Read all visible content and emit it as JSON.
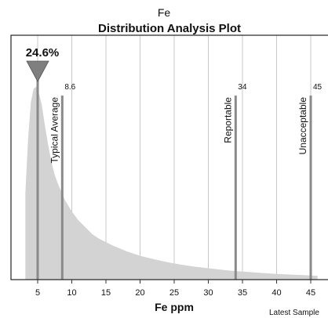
{
  "chart_data": {
    "type": "area",
    "title": "Distribution Analysis Plot",
    "subtitle": "Fe",
    "xlabel": "Fe ppm",
    "ylabel": "",
    "xlim": [
      3,
      46
    ],
    "xticks": [
      5,
      10,
      15,
      20,
      25,
      30,
      35,
      40,
      45
    ],
    "grid": true,
    "x": [
      3.2,
      3.6,
      4.0,
      4.4,
      4.8,
      5.2,
      5.6,
      6.0,
      6.5,
      7.0,
      7.5,
      8.0,
      9.0,
      10.0,
      11.0,
      12.0,
      13.0,
      14.0,
      15.0,
      16.0,
      18.0,
      20.0,
      22.0,
      24.0,
      26.0,
      28.0,
      30.0,
      33.0,
      36.0,
      40.0,
      46.0
    ],
    "y": [
      0.38,
      0.62,
      0.78,
      0.84,
      0.85,
      0.82,
      0.77,
      0.69,
      0.6,
      0.52,
      0.46,
      0.42,
      0.35,
      0.3,
      0.26,
      0.23,
      0.2,
      0.18,
      0.165,
      0.15,
      0.125,
      0.105,
      0.09,
      0.077,
      0.066,
      0.057,
      0.05,
      0.04,
      0.033,
      0.025,
      0.017
    ],
    "peak": {
      "label": "24.6%",
      "x": 5.0
    },
    "markers": [
      {
        "label": "Typical Average",
        "value": 8.6,
        "value_text": "8.6"
      },
      {
        "label": "Reportable",
        "value": 34,
        "value_text": "34"
      },
      {
        "label": "Unacceptable",
        "value": 45,
        "value_text": "45"
      }
    ],
    "footer": "Latest Sample",
    "colors": {
      "area": "#d3d3d3",
      "grid": "#c8c8c8",
      "marker": "#8a8a8a",
      "arrow": "#7f7f7f"
    }
  }
}
